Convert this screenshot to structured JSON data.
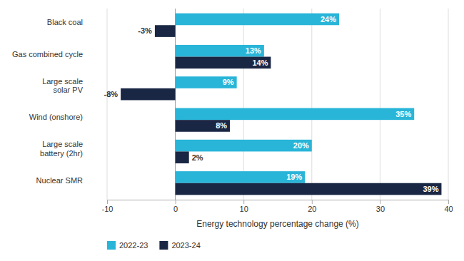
{
  "chart_data": {
    "type": "bar",
    "orientation": "horizontal",
    "categories": [
      "Black coal",
      "Gas combined cycle",
      "Large scale\nsolar PV",
      "Wind (onshore)",
      "Large scale\nbattery (2hr)",
      "Nuclear SMR"
    ],
    "series": [
      {
        "name": "2022-23",
        "color": "#29b5d8",
        "values": [
          24,
          13,
          9,
          35,
          20,
          19
        ],
        "value_labels": [
          "24%",
          "13%",
          "9%",
          "35%",
          "20%",
          "19%"
        ]
      },
      {
        "name": "2023-24",
        "color": "#1a2744",
        "values": [
          -3,
          14,
          -8,
          8,
          2,
          39
        ],
        "value_labels": [
          "-3%",
          "14%",
          "-8%",
          "8%",
          "2%",
          "39%"
        ]
      }
    ],
    "xlabel": "Energy technology percentage change (%)",
    "xlim": [
      -10,
      40
    ],
    "xticks": [
      -10,
      0,
      10,
      20,
      30,
      40
    ],
    "grid": true,
    "legend": "bottom",
    "data_labels": true
  }
}
